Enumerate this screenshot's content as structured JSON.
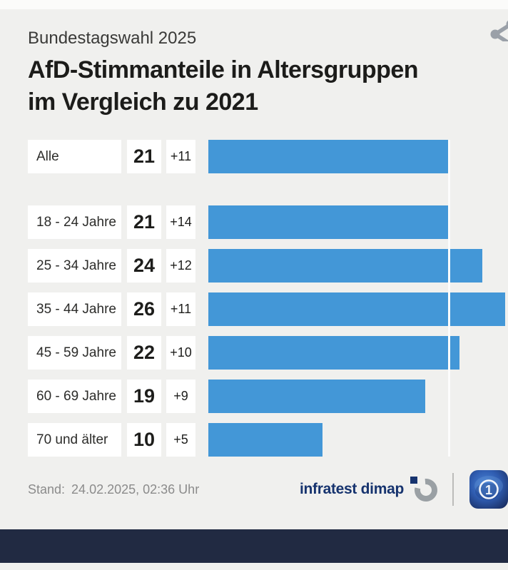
{
  "header": {
    "kicker": "Bundestagswahl 2025",
    "title_line1": "AfD-Stimmanteile in Altersgruppen",
    "title_line2": "im Vergleich zu 2021"
  },
  "rows": [
    {
      "label": "Alle",
      "value": "21",
      "change": "+11"
    },
    {
      "label": "18 - 24 Jahre",
      "value": "21",
      "change": "+14"
    },
    {
      "label": "25 - 34 Jahre",
      "value": "24",
      "change": "+12"
    },
    {
      "label": "35 - 44 Jahre",
      "value": "26",
      "change": "+11"
    },
    {
      "label": "45 - 59 Jahre",
      "value": "22",
      "change": "+10"
    },
    {
      "label": "60 - 69 Jahre",
      "value": "19",
      "change": "+9"
    },
    {
      "label": "70 und älter",
      "value": "10",
      "change": "+5"
    }
  ],
  "footer": {
    "stand_label": "Stand:",
    "stand_value": "24.02.2025, 02:36 Uhr",
    "source_logo_text": "infratest dimap"
  },
  "icons": {
    "share": "share-icon",
    "infratest_mark": "infratest-dimap-mark",
    "ard_logo": "ard-tagesschau-logo"
  },
  "colors": {
    "bar": "#4397d7",
    "background": "#f0f0ee",
    "box_white": "#ffffff",
    "reference_line": "#fcfcfc",
    "navy_bottom_bar": "#212a42",
    "infratest_navy": "#16336e",
    "stand_gray": "#8b8b8b",
    "share_gray": "#9aa0a8"
  },
  "chart_data": {
    "type": "bar",
    "orientation": "horizontal",
    "subtitle": "Bundestagswahl 2025",
    "title": "AfD-Stimmanteile in Altersgruppen im Vergleich zu 2021",
    "categories": [
      "Alle",
      "18 - 24 Jahre",
      "25 - 34 Jahre",
      "35 - 44 Jahre",
      "45 - 59 Jahre",
      "60 - 69 Jahre",
      "70 und älter"
    ],
    "values": [
      21,
      21,
      24,
      26,
      22,
      19,
      10
    ],
    "changes_vs_2021": [
      11,
      14,
      12,
      11,
      10,
      9,
      5
    ],
    "unit": "percent",
    "xlim": [
      0,
      26.25
    ],
    "reference_line": 21,
    "grid": false,
    "legend": false,
    "bar_color": "#4397d7",
    "value_labels_position": "left-boxes",
    "source": "infratest dimap",
    "timestamp_shown": "24.02.2025, 02:36 Uhr"
  }
}
